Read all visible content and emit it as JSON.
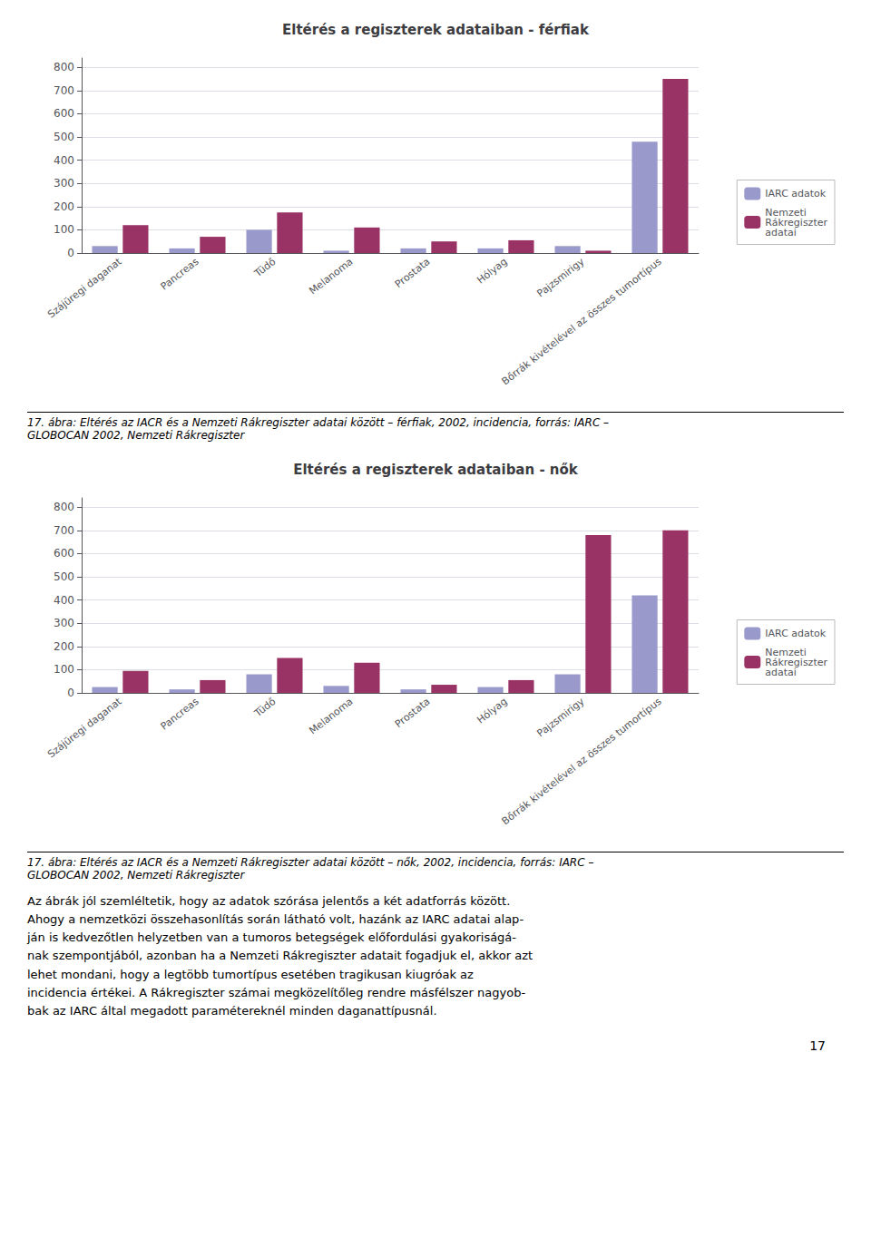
{
  "chart_data": [
    {
      "type": "bar",
      "title": "Eltérés a regiszterek adataiban - férfiak",
      "categories": [
        "Szájüregi daganat",
        "Pancreas",
        "Tüdő",
        "Melanoma",
        "Prostata",
        "Hólyag",
        "Pajzsmirigy",
        "Bőrrák kivételével az összes tumortípus"
      ],
      "series": [
        {
          "name": "IARC adatok",
          "color": "#9999CC",
          "values": [
            30,
            20,
            100,
            10,
            20,
            20,
            30,
            480
          ]
        },
        {
          "name": "Nemzeti\nRákregiszter\nadatai",
          "color": "#993366",
          "values": [
            120,
            70,
            175,
            110,
            50,
            55,
            10,
            750
          ]
        }
      ],
      "ylim": [
        0,
        840
      ],
      "yticks": [
        0,
        100,
        200,
        300,
        400,
        500,
        600,
        700,
        800
      ],
      "grid": true,
      "legend": "right",
      "caption": "17. ábra: Eltérés az IACR és a Nemzeti Rákregiszter adatai között – férfiak, 2002, incidencia, forrás: IARC –\nGLOBOCAN 2002, Nemzeti Rákregiszter"
    },
    {
      "type": "bar",
      "title": "Eltérés a regiszterek adataiban - nők",
      "categories": [
        "Szájüregi daganat",
        "Pancreas",
        "Tüdő",
        "Melanoma",
        "Prostata",
        "Hólyag",
        "Pajzsmirigy",
        "Bőrrák kivételével az összes tumortípus"
      ],
      "series": [
        {
          "name": "IARC adatok",
          "color": "#9999CC",
          "values": [
            25,
            15,
            80,
            30,
            15,
            25,
            80,
            420
          ]
        },
        {
          "name": "Nemzeti\nRákregiszter\nadatai",
          "color": "#993366",
          "values": [
            95,
            55,
            150,
            130,
            35,
            55,
            680,
            700
          ]
        }
      ],
      "ylim": [
        0,
        840
      ],
      "yticks": [
        0,
        100,
        200,
        300,
        400,
        500,
        600,
        700,
        800
      ],
      "grid": true,
      "legend": "right",
      "caption": "17. ábra: Eltérés az IACR és a Nemzeti Rákregiszter adatai között – nők, 2002, incidencia, forrás: IARC –\nGLOBOCAN 2002, Nemzeti Rákregiszter"
    }
  ],
  "body_text": "Az ábrák jól szemléltetik, hogy az adatok szórása jelentős a két adatforrás között.\nAhogy a nemzetközi összehasonlítás során látható volt, hazánk az IARC adatai alap-\nján is kedvezőtlen helyzetben van a tumoros betegségek előfordulási gyakoriságá-\nnak szempontjából, azonban ha a Nemzeti Rákregiszter adatait fogadjuk el, akkor azt\nlehet mondani, hogy a legtöbb tumortípus esetében tragikusan kiugróak az\nincidencia értékei. A Rákregiszter számai megközelítőleg rendre másfélszer nagyob-\nbak az IARC által megadott paramétereknél minden daganattípusnál.",
  "page_number": "17"
}
